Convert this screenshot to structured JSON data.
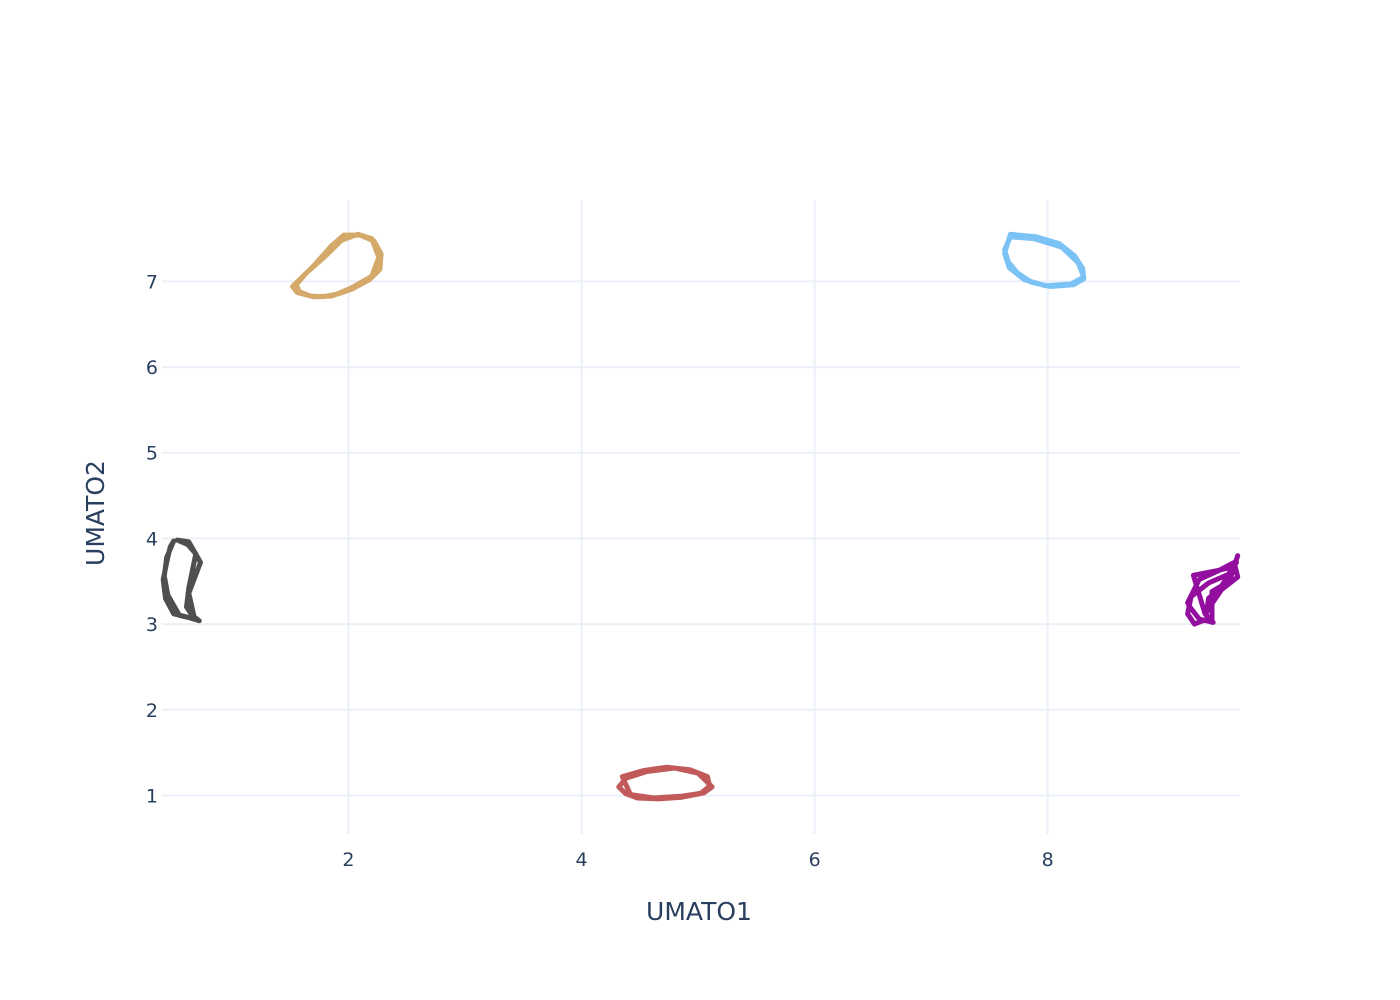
{
  "chart_data": {
    "type": "line",
    "title": "",
    "xlabel": "UMATO1",
    "ylabel": "UMATO2",
    "xlim": [
      0.4,
      9.65
    ],
    "ylim": [
      0.55,
      7.95
    ],
    "xticks": [
      2,
      4,
      6,
      8
    ],
    "yticks": [
      1,
      2,
      3,
      4,
      5,
      6,
      7
    ],
    "grid": true,
    "legend": "none",
    "series": [
      {
        "color": "#d4a96a",
        "x": [
          1.52,
          1.7,
          1.85,
          1.96,
          2.1,
          2.22,
          2.28,
          2.27,
          2.18,
          2.03,
          1.9,
          1.78,
          1.67,
          1.58,
          1.55,
          1.64,
          1.79,
          1.94,
          2.08,
          2.2,
          2.26,
          2.2,
          2.02,
          1.86,
          1.7,
          1.56,
          1.52
        ],
        "y": [
          6.94,
          7.18,
          7.41,
          7.54,
          7.54,
          7.47,
          7.32,
          7.14,
          7.02,
          6.91,
          6.85,
          6.82,
          6.83,
          6.88,
          6.96,
          7.1,
          7.28,
          7.48,
          7.55,
          7.5,
          7.28,
          7.06,
          6.92,
          6.83,
          6.82,
          6.87,
          6.94
        ]
      },
      {
        "color": "#7cc3f5",
        "x": [
          7.68,
          7.9,
          8.1,
          8.23,
          8.3,
          8.31,
          8.22,
          8.02,
          7.86,
          7.74,
          7.66,
          7.63,
          7.68,
          7.88,
          8.12,
          8.26,
          8.31,
          8.2,
          7.98,
          7.8,
          7.67,
          7.63,
          7.68
        ],
        "y": [
          7.55,
          7.52,
          7.44,
          7.3,
          7.15,
          7.03,
          6.96,
          6.94,
          6.99,
          7.1,
          7.23,
          7.37,
          7.52,
          7.5,
          7.4,
          7.22,
          7.05,
          6.97,
          6.95,
          7.02,
          7.16,
          7.33,
          7.55
        ]
      },
      {
        "color": "#4f4f4f",
        "x": [
          0.53,
          0.62,
          0.69,
          0.66,
          0.63,
          0.61,
          0.66,
          0.72,
          0.62,
          0.5,
          0.43,
          0.41,
          0.44,
          0.47,
          0.5,
          0.44,
          0.42,
          0.45,
          0.55,
          0.68,
          0.63,
          0.73,
          0.63,
          0.53
        ],
        "y": [
          3.98,
          3.93,
          3.82,
          3.62,
          3.42,
          3.2,
          3.1,
          3.04,
          3.08,
          3.12,
          3.3,
          3.52,
          3.72,
          3.9,
          3.97,
          3.78,
          3.56,
          3.34,
          3.1,
          3.06,
          3.36,
          3.72,
          3.96,
          3.98
        ]
      },
      {
        "color": "#c25a5a",
        "x": [
          4.35,
          4.53,
          4.73,
          4.93,
          5.08,
          5.1,
          5.02,
          4.86,
          4.66,
          4.48,
          4.38,
          4.32,
          4.38,
          4.56,
          4.8,
          5.0,
          5.12,
          5.05,
          4.85,
          4.62,
          4.42,
          4.35
        ],
        "y": [
          1.22,
          1.29,
          1.33,
          1.3,
          1.22,
          1.11,
          1.02,
          0.98,
          0.96,
          0.97,
          1.02,
          1.1,
          1.2,
          1.28,
          1.32,
          1.26,
          1.1,
          1.03,
          0.99,
          0.97,
          1.01,
          1.22
        ]
      },
      {
        "color": "#930e9e",
        "x": [
          9.25,
          9.44,
          9.6,
          9.63,
          9.56,
          9.41,
          9.41,
          9.33,
          9.26,
          9.2,
          9.23,
          9.38,
          9.55,
          9.62,
          9.48,
          9.38,
          9.36,
          9.42,
          9.3,
          9.22,
          9.2,
          9.3,
          9.46,
          9.6,
          9.63,
          9.49,
          9.35,
          9.25
        ],
        "y": [
          3.57,
          3.62,
          3.67,
          3.8,
          3.5,
          3.38,
          3.05,
          3.04,
          3.0,
          3.12,
          3.32,
          3.48,
          3.58,
          3.72,
          3.42,
          3.3,
          3.1,
          3.02,
          3.06,
          3.2,
          3.25,
          3.52,
          3.62,
          3.72,
          3.55,
          3.4,
          3.12,
          3.57
        ]
      }
    ]
  }
}
